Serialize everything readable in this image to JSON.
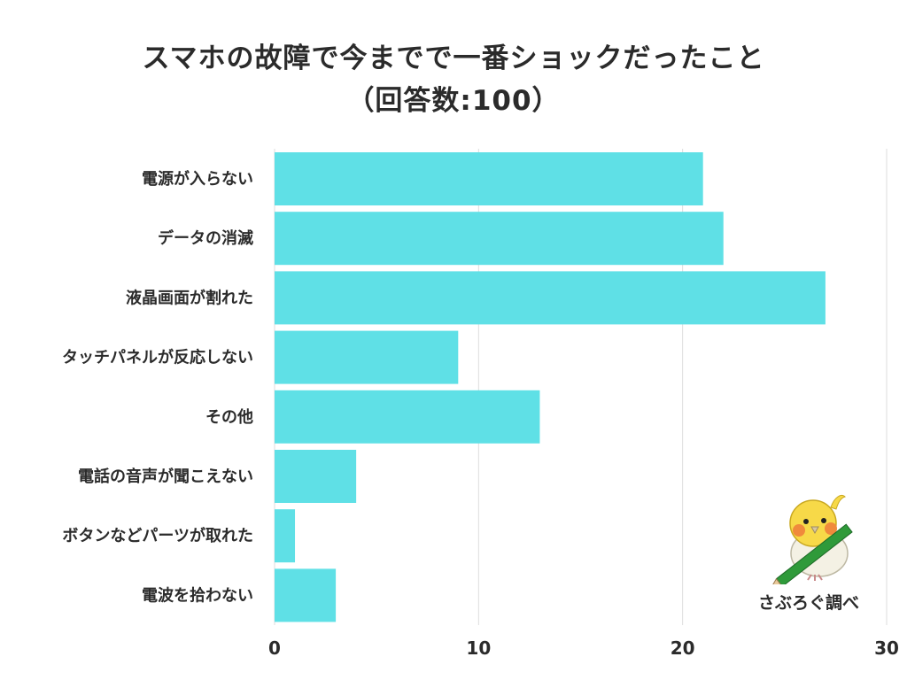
{
  "title_line_1": "スマホの故障で今までで一番ショックだったこと",
  "title_line_2": "（回答数:100）",
  "credit": "さぶろぐ調べ",
  "mascot_icon": "cockatiel-with-pencil-icon",
  "colors": {
    "bar": "#5fe0e6",
    "grid": "#dddddd",
    "text": "#2b2b2b"
  },
  "chart_data": {
    "type": "bar",
    "orientation": "horizontal",
    "categories": [
      "電源が入らない",
      "データの消滅",
      "液晶画面が割れた",
      "タッチパネルが反応しない",
      "その他",
      "電話の音声が聞こえない",
      "ボタンなどパーツが取れた",
      "電波を拾わない"
    ],
    "values": [
      21,
      22,
      27,
      9,
      13,
      4,
      1,
      3
    ],
    "xlim": [
      0,
      30
    ],
    "xticks": [
      0,
      10,
      20,
      30
    ],
    "grid": true
  }
}
